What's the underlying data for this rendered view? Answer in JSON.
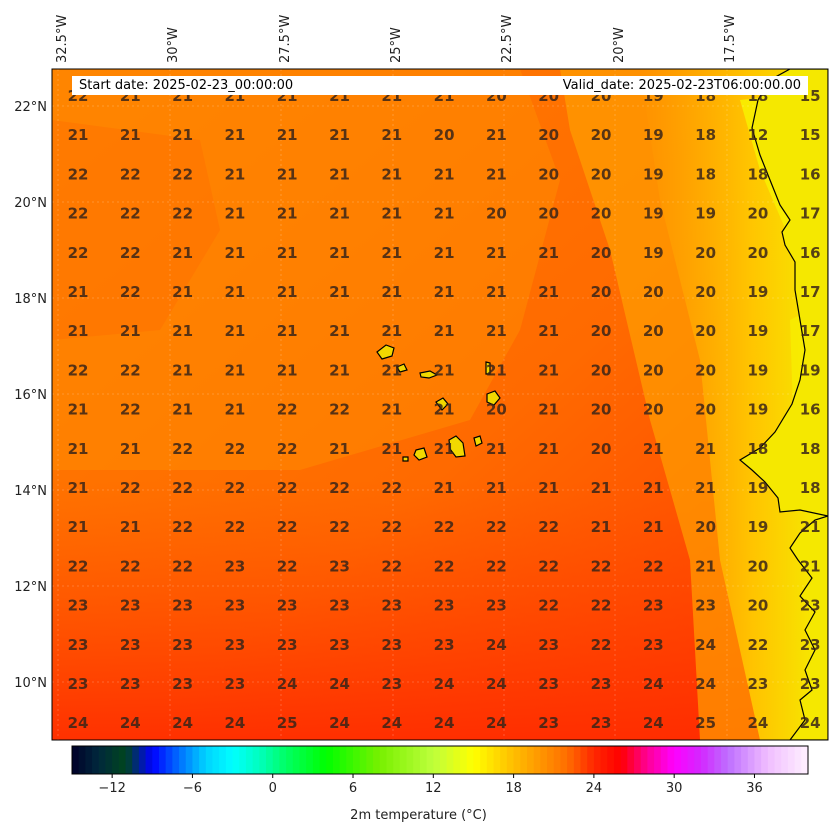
{
  "header": {
    "start_date": "Start date: 2025-02-23_00:00:00",
    "valid_date": "Valid_date: 2025-02-23T06:00:00.00"
  },
  "map": {
    "lon_labels": [
      "32.5°W",
      "30°W",
      "27.5°W",
      "25°W",
      "22.5°W",
      "20°W",
      "17.5°W"
    ],
    "lat_labels": [
      "22°N",
      "20°N",
      "18°N",
      "16°N",
      "14°N",
      "12°N",
      "10°N"
    ],
    "grid_values": [
      [
        22,
        21,
        21,
        21,
        21,
        21,
        21,
        21,
        20,
        20,
        20,
        19,
        18,
        18,
        15
      ],
      [
        21,
        21,
        21,
        21,
        21,
        21,
        21,
        20,
        21,
        20,
        20,
        19,
        18,
        12,
        15
      ],
      [
        22,
        22,
        22,
        21,
        21,
        21,
        21,
        21,
        21,
        20,
        20,
        19,
        18,
        18,
        16
      ],
      [
        22,
        22,
        22,
        21,
        21,
        21,
        21,
        21,
        20,
        20,
        20,
        19,
        19,
        20,
        17
      ],
      [
        22,
        22,
        21,
        21,
        21,
        21,
        21,
        21,
        21,
        21,
        20,
        19,
        20,
        20,
        16
      ],
      [
        21,
        22,
        21,
        21,
        21,
        21,
        21,
        21,
        21,
        21,
        20,
        20,
        20,
        19,
        17
      ],
      [
        21,
        21,
        21,
        21,
        21,
        21,
        21,
        21,
        21,
        21,
        20,
        20,
        20,
        19,
        17
      ],
      [
        22,
        22,
        21,
        21,
        21,
        21,
        21,
        21,
        21,
        21,
        20,
        20,
        20,
        19,
        19
      ],
      [
        21,
        22,
        21,
        21,
        22,
        22,
        21,
        21,
        20,
        21,
        20,
        20,
        20,
        19,
        16
      ],
      [
        21,
        21,
        22,
        22,
        22,
        21,
        21,
        21,
        21,
        21,
        20,
        21,
        21,
        18,
        18
      ],
      [
        21,
        22,
        22,
        22,
        22,
        22,
        22,
        21,
        21,
        21,
        21,
        21,
        21,
        19,
        18
      ],
      [
        21,
        21,
        22,
        22,
        22,
        22,
        22,
        22,
        22,
        22,
        21,
        21,
        20,
        19,
        21
      ],
      [
        22,
        22,
        22,
        23,
        22,
        23,
        22,
        22,
        22,
        22,
        22,
        22,
        21,
        20,
        21
      ],
      [
        23,
        23,
        23,
        23,
        23,
        23,
        23,
        23,
        23,
        22,
        22,
        23,
        23,
        20,
        23
      ],
      [
        23,
        23,
        23,
        23,
        23,
        23,
        23,
        23,
        24,
        23,
        22,
        23,
        24,
        22,
        23
      ],
      [
        23,
        23,
        23,
        23,
        24,
        24,
        23,
        24,
        24,
        23,
        23,
        24,
        24,
        23,
        23
      ],
      [
        24,
        24,
        24,
        24,
        25,
        24,
        24,
        24,
        24,
        23,
        23,
        24,
        25,
        24,
        24
      ]
    ]
  },
  "colorbar": {
    "tick_labels": [
      "−12",
      "−6",
      "0",
      "6",
      "12",
      "18",
      "24",
      "30",
      "36"
    ],
    "tick_values": [
      -12,
      -6,
      0,
      6,
      12,
      18,
      24,
      30,
      36
    ],
    "vmin": -15,
    "vmax": 40,
    "label": "2m temperature (${}^\\circ$C)",
    "label_text": "2m temperature (°C)"
  }
}
